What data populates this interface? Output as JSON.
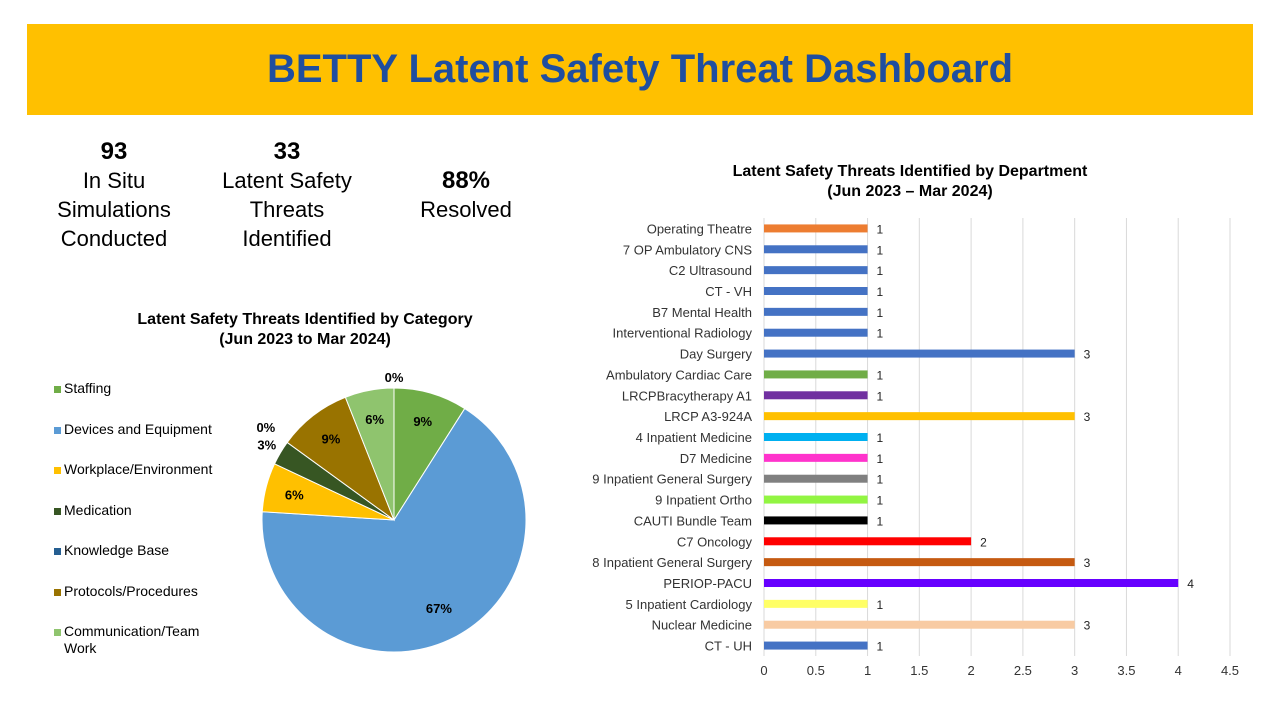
{
  "title": "BETTY Latent Safety Threat Dashboard",
  "stats": [
    {
      "value": "93",
      "label": [
        "In Situ",
        "Simulations",
        "Conducted"
      ]
    },
    {
      "value": "33",
      "label": [
        "Latent Safety",
        "Threats",
        "Identified"
      ]
    },
    {
      "value": "88%",
      "label": [
        "Resolved"
      ]
    }
  ],
  "chart_data": [
    {
      "type": "pie",
      "title": [
        "Latent Safety Threats Identified by Category",
        "(Jun 2023 to Mar 2024)"
      ],
      "categories": [
        "Staffing",
        "Devices and Equipment",
        "Workplace/Environment",
        "Medication",
        "Knowledge Base",
        "Protocols/Procedures",
        "Communication/Team Work"
      ],
      "values": [
        9,
        67,
        6,
        3,
        0,
        9,
        6
      ],
      "labels": [
        "9%",
        "67%",
        "6%",
        "3%",
        "0%",
        "9%",
        "6%"
      ],
      "colors": [
        "#70ad47",
        "#5b9bd5",
        "#ffc000",
        "#375623",
        "#255e91",
        "#997300",
        "#8fc46e"
      ],
      "top_label": "0%",
      "legend_position": "left"
    },
    {
      "type": "bar",
      "orientation": "horizontal",
      "title": [
        "Latent Safety Threats Identified by Department",
        "(Jun 2023 – Mar 2024)"
      ],
      "categories": [
        "Operating Theatre",
        "7 OP Ambulatory CNS",
        "C2 Ultrasound",
        "CT - VH",
        "B7 Mental Health",
        "Interventional Radiology",
        "Day Surgery",
        "Ambulatory Cardiac Care",
        "LRCPBracytherapy A1",
        "LRCP A3-924A",
        "4 Inpatient Medicine",
        "D7 Medicine",
        "9 Inpatient General Surgery",
        "9 Inpatient Ortho",
        "CAUTI Bundle Team",
        "C7 Oncology",
        "8 Inpatient General Surgery",
        "PERIOP-PACU",
        "5 Inpatient Cardiology",
        "Nuclear Medicine",
        "CT - UH"
      ],
      "values": [
        1,
        1,
        1,
        1,
        1,
        1,
        3,
        1,
        1,
        3,
        1,
        1,
        1,
        1,
        1,
        2,
        3,
        4,
        1,
        3,
        1
      ],
      "colors": [
        "#ed7d31",
        "#4472c4",
        "#4472c4",
        "#4472c4",
        "#4472c4",
        "#4472c4",
        "#4472c4",
        "#70ad47",
        "#7030a0",
        "#ffc000",
        "#00b0f0",
        "#ff33cc",
        "#808080",
        "#92f542",
        "#000000",
        "#ff0000",
        "#c55a11",
        "#6600ff",
        "#ffff66",
        "#f8cba3",
        "#4472c4"
      ],
      "xlim": [
        0,
        4.5
      ],
      "xticks": [
        "0",
        "0.5",
        "1",
        "1.5",
        "2",
        "2.5",
        "3",
        "3.5",
        "4",
        "4.5"
      ],
      "grid": true
    }
  ]
}
